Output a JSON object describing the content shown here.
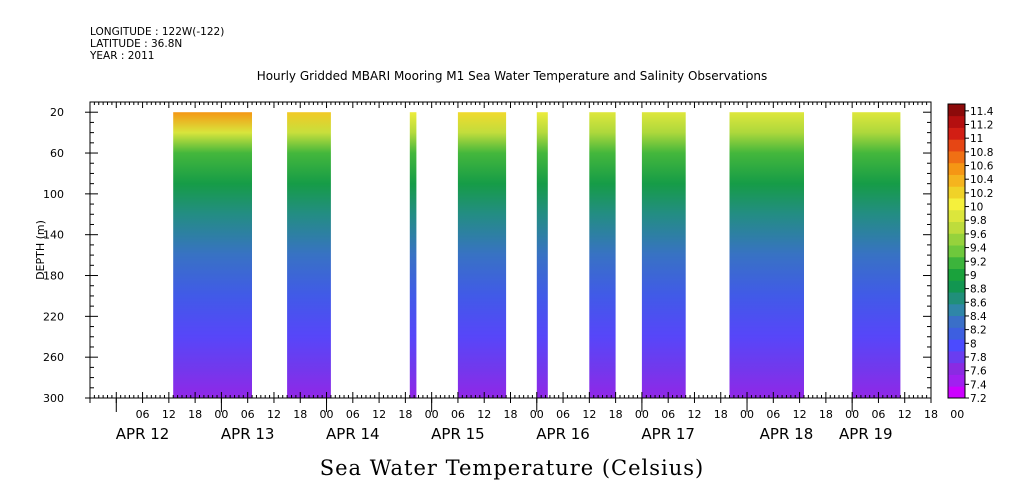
{
  "header": {
    "longitude": "LONGITUDE : 122W(-122)",
    "latitude": "LATITUDE : 36.8N",
    "year": "YEAR : 2011"
  },
  "chart_data": {
    "type": "heatmap",
    "title": "Hourly Gridded MBARI Mooring M1 Sea Water Temperature and Salinity Observations",
    "xlabel": "",
    "ylabel": "DEPTH (m)",
    "caption": "Sea Water Temperature (Celsius)",
    "x_hour_ticks": [
      "06",
      "12",
      "18",
      "00",
      "06",
      "12",
      "18",
      "00",
      "06",
      "12",
      "18",
      "00",
      "06",
      "12",
      "18",
      "00",
      "06",
      "12",
      "18",
      "00",
      "06",
      "12",
      "18",
      "00",
      "06",
      "12",
      "18",
      "00",
      "06",
      "12",
      "18",
      "00"
    ],
    "x_day_labels": [
      "APR 12",
      "APR 13",
      "APR 14",
      "APR 15",
      "APR 16",
      "APR 17",
      "APR 18",
      "APR 19"
    ],
    "xlim_hours_since_apr12_00": [
      -6,
      186
    ],
    "y_ticks": [
      20,
      60,
      100,
      140,
      180,
      220,
      260,
      300
    ],
    "ylim": [
      10,
      300
    ],
    "y_inverted": true,
    "colorbar": {
      "min": 7.2,
      "max": 11.5,
      "labels": [
        "7.2",
        "7.4",
        "7.6",
        "7.8",
        "8",
        "8.2",
        "8.4",
        "8.6",
        "8.8",
        "9",
        "9.2",
        "9.4",
        "9.6",
        "9.8",
        "10",
        "10.2",
        "10.4",
        "10.6",
        "10.8",
        "11",
        "11.2",
        "11.4"
      ],
      "colors": [
        "#cc00ff",
        "#a020f0",
        "#8a2be2",
        "#6a3df0",
        "#4b4bff",
        "#3d5fe0",
        "#3a6fc8",
        "#2f86a8",
        "#208f7a",
        "#129651",
        "#1aa23c",
        "#3cb43c",
        "#6ec83c",
        "#96d23c",
        "#bedc3c",
        "#dce63c",
        "#f5f03c",
        "#f0d228",
        "#f5b41e",
        "#f59614",
        "#f07014",
        "#e64614",
        "#d21e14",
        "#b40f0f",
        "#8c0a0a"
      ]
    },
    "segments": [
      {
        "start": 13.0,
        "end": 31.0,
        "surface_temp": 10.6
      },
      {
        "start": 39.0,
        "end": 49.0,
        "surface_temp": 10.3
      },
      {
        "start": 67.0,
        "end": 68.5,
        "surface_temp": 10.0
      },
      {
        "start": 78.0,
        "end": 89.0,
        "surface_temp": 10.2
      },
      {
        "start": 96.0,
        "end": 98.5,
        "surface_temp": 10.0
      },
      {
        "start": 108.0,
        "end": 114.0,
        "surface_temp": 9.9
      },
      {
        "start": 120.0,
        "end": 130.0,
        "surface_temp": 9.9
      },
      {
        "start": 140.0,
        "end": 157.0,
        "surface_temp": 9.9
      },
      {
        "start": 168.0,
        "end": 179.0,
        "surface_temp": 9.9
      }
    ],
    "depth_profile": [
      {
        "depth": 20,
        "temp": 9.8
      },
      {
        "depth": 40,
        "temp": 9.5
      },
      {
        "depth": 60,
        "temp": 9.2
      },
      {
        "depth": 90,
        "temp": 8.9
      },
      {
        "depth": 120,
        "temp": 8.6
      },
      {
        "depth": 160,
        "temp": 8.3
      },
      {
        "depth": 200,
        "temp": 8.05
      },
      {
        "depth": 240,
        "temp": 7.85
      },
      {
        "depth": 270,
        "temp": 7.7
      },
      {
        "depth": 300,
        "temp": 7.5
      }
    ]
  }
}
